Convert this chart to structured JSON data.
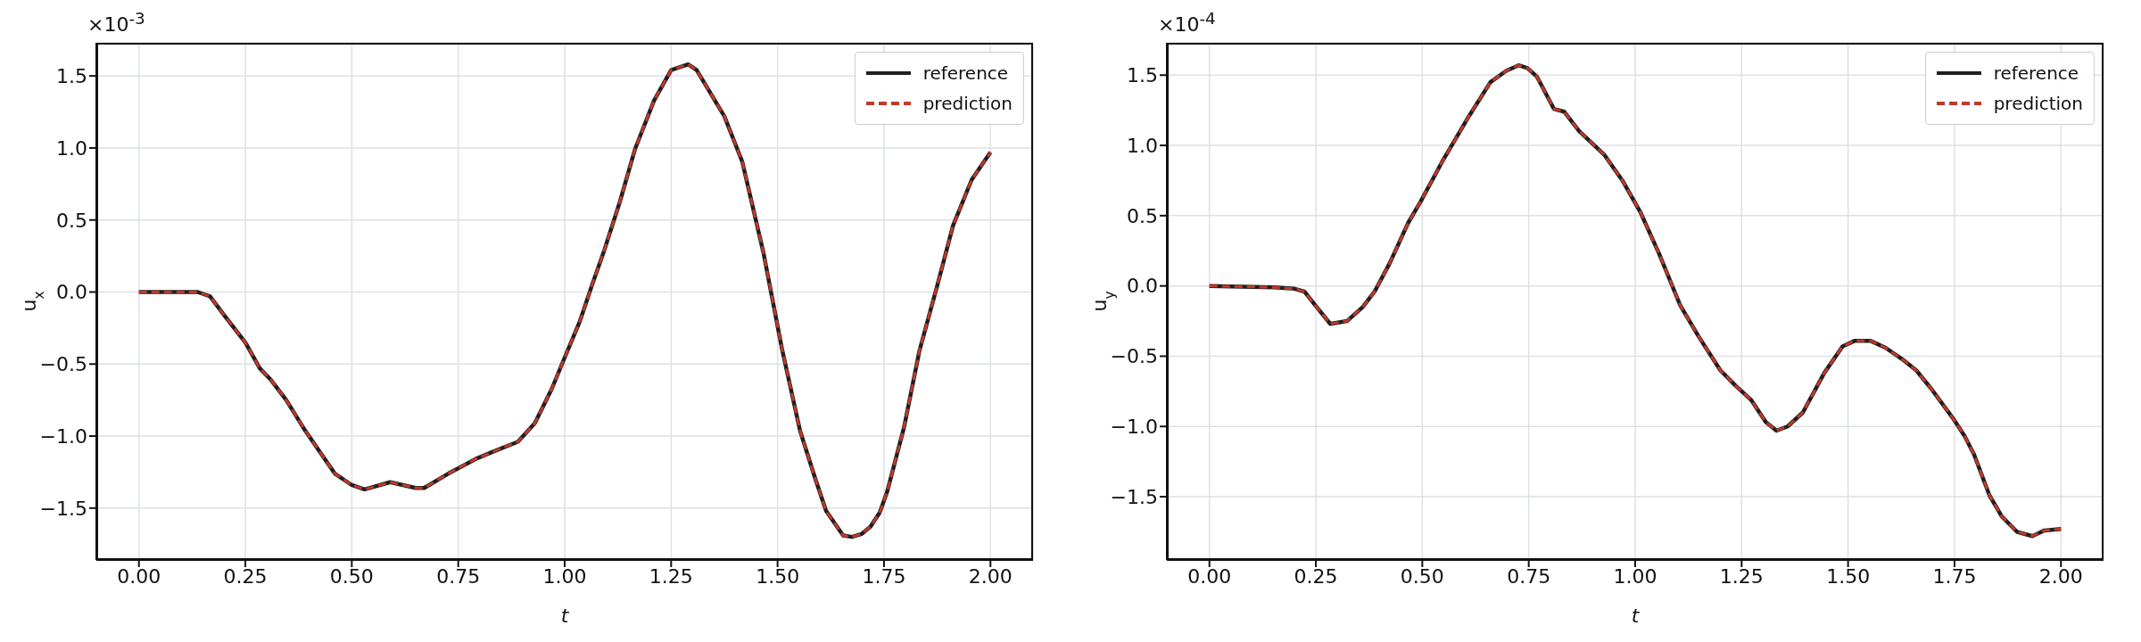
{
  "chart_data": [
    {
      "type": "line",
      "xlabel": "t",
      "ylabel": "u$_{x}$",
      "annotations": [
        "×10$^{-3}$"
      ],
      "legend": "top right",
      "grid": true,
      "x": [
        0,
        0.138,
        0.167,
        0.2,
        0.25,
        0.284,
        0.31,
        0.346,
        0.39,
        0.46,
        0.5,
        0.53,
        0.59,
        0.65,
        0.67,
        0.727,
        0.79,
        0.83,
        0.89,
        0.93,
        0.97,
        1.0,
        1.036,
        1.065,
        1.093,
        1.13,
        1.165,
        1.21,
        1.25,
        1.29,
        1.31,
        1.375,
        1.417,
        1.467,
        1.51,
        1.553,
        1.589,
        1.614,
        1.654,
        1.675,
        1.697,
        1.718,
        1.74,
        1.757,
        1.797,
        1.833,
        1.876,
        1.912,
        1.956,
        2.0
      ],
      "series": [
        {
          "name": "reference",
          "color": "#1f1f1f",
          "line_style": "solid",
          "values": [
            0,
            0,
            -0.03,
            -0.16,
            -0.35,
            -0.53,
            -0.61,
            -0.75,
            -0.96,
            -1.26,
            -1.34,
            -1.37,
            -1.32,
            -1.36,
            -1.36,
            -1.26,
            -1.16,
            -1.11,
            -1.04,
            -0.91,
            -0.67,
            -0.455,
            -0.2,
            0.055,
            0.29,
            0.63,
            0.99,
            1.33,
            1.54,
            1.58,
            1.54,
            1.22,
            0.905,
            0.27,
            -0.39,
            -0.965,
            -1.3,
            -1.52,
            -1.69,
            -1.7,
            -1.68,
            -1.63,
            -1.53,
            -1.39,
            -0.94,
            -0.41,
            0.055,
            0.46,
            0.78,
            0.97
          ]
        },
        {
          "name": "prediction",
          "color": "#c0392b",
          "line_style": "dashed",
          "values": [
            0,
            0,
            -0.03,
            -0.16,
            -0.35,
            -0.53,
            -0.61,
            -0.75,
            -0.96,
            -1.26,
            -1.34,
            -1.37,
            -1.32,
            -1.36,
            -1.36,
            -1.26,
            -1.16,
            -1.11,
            -1.04,
            -0.91,
            -0.67,
            -0.455,
            -0.2,
            0.055,
            0.29,
            0.63,
            0.99,
            1.33,
            1.54,
            1.58,
            1.54,
            1.22,
            0.905,
            0.27,
            -0.39,
            -0.965,
            -1.3,
            -1.52,
            -1.69,
            -1.7,
            -1.68,
            -1.63,
            -1.53,
            -1.39,
            -0.94,
            -0.41,
            0.055,
            0.46,
            0.78,
            0.97
          ]
        }
      ],
      "xlim": [
        -0.1,
        2.1
      ],
      "xticks": [
        {
          "value": 0,
          "label": "0.00"
        },
        {
          "value": 0.25,
          "label": "0.25"
        },
        {
          "value": 0.5,
          "label": "0.50"
        },
        {
          "value": 0.75,
          "label": "0.75"
        },
        {
          "value": 1,
          "label": "1.00"
        },
        {
          "value": 1.25,
          "label": "1.25"
        },
        {
          "value": 1.5,
          "label": "1.50"
        },
        {
          "value": 1.75,
          "label": "1.75"
        },
        {
          "value": 2,
          "label": "2.00"
        }
      ],
      "ylim": [
        -1.86,
        1.73
      ],
      "yticks": [
        {
          "value": -1.5,
          "label": "−1.5"
        },
        {
          "value": -1,
          "label": "−1.0"
        },
        {
          "value": -0.5,
          "label": "−0.5"
        },
        {
          "value": 0,
          "label": "0.0"
        },
        {
          "value": 0.5,
          "label": "0.5"
        },
        {
          "value": 1,
          "label": "1.0"
        },
        {
          "value": 1.5,
          "label": "1.5"
        }
      ]
    },
    {
      "type": "line",
      "xlabel": "t",
      "ylabel": "u$_{y}$",
      "annotations": [
        "×10$^{-4}$"
      ],
      "legend": "top right",
      "grid": true,
      "x": [
        0,
        0.151,
        0.2,
        0.223,
        0.249,
        0.284,
        0.323,
        0.36,
        0.388,
        0.424,
        0.467,
        0.496,
        0.546,
        0.61,
        0.66,
        0.697,
        0.726,
        0.747,
        0.769,
        0.809,
        0.833,
        0.869,
        0.927,
        0.97,
        1.013,
        1.056,
        1.106,
        1.149,
        1.2,
        1.236,
        1.272,
        1.307,
        1.332,
        1.358,
        1.394,
        1.444,
        1.487,
        1.516,
        1.552,
        1.588,
        1.631,
        1.66,
        1.695,
        1.746,
        1.774,
        1.796,
        1.832,
        1.861,
        1.897,
        1.933,
        1.961,
        2.0
      ],
      "series": [
        {
          "name": "reference",
          "color": "#1f1f1f",
          "line_style": "solid",
          "values": [
            0,
            -0.01,
            -0.02,
            -0.04,
            -0.14,
            -0.27,
            -0.25,
            -0.15,
            -0.04,
            0.165,
            0.45,
            0.6,
            0.88,
            1.21,
            1.45,
            1.53,
            1.57,
            1.55,
            1.49,
            1.26,
            1.24,
            1.1,
            0.935,
            0.75,
            0.52,
            0.23,
            -0.14,
            -0.36,
            -0.6,
            -0.71,
            -0.81,
            -0.97,
            -1.03,
            -1.0,
            -0.9,
            -0.62,
            -0.43,
            -0.39,
            -0.39,
            -0.44,
            -0.53,
            -0.6,
            -0.73,
            -0.94,
            -1.07,
            -1.2,
            -1.49,
            -1.64,
            -1.75,
            -1.78,
            -1.74,
            -1.73
          ]
        },
        {
          "name": "prediction",
          "color": "#c0392b",
          "line_style": "dashed",
          "values": [
            0,
            -0.01,
            -0.02,
            -0.04,
            -0.14,
            -0.27,
            -0.25,
            -0.15,
            -0.04,
            0.165,
            0.45,
            0.6,
            0.88,
            1.21,
            1.45,
            1.53,
            1.57,
            1.55,
            1.49,
            1.26,
            1.24,
            1.1,
            0.935,
            0.75,
            0.52,
            0.23,
            -0.14,
            -0.36,
            -0.6,
            -0.71,
            -0.81,
            -0.97,
            -1.03,
            -1.0,
            -0.9,
            -0.62,
            -0.43,
            -0.39,
            -0.39,
            -0.44,
            -0.53,
            -0.6,
            -0.73,
            -0.94,
            -1.07,
            -1.2,
            -1.49,
            -1.64,
            -1.75,
            -1.78,
            -1.74,
            -1.73
          ]
        }
      ],
      "xlim": [
        -0.1,
        2.1
      ],
      "xticks": [
        {
          "value": 0,
          "label": "0.00"
        },
        {
          "value": 0.25,
          "label": "0.25"
        },
        {
          "value": 0.5,
          "label": "0.50"
        },
        {
          "value": 0.75,
          "label": "0.75"
        },
        {
          "value": 1,
          "label": "1.00"
        },
        {
          "value": 1.25,
          "label": "1.25"
        },
        {
          "value": 1.5,
          "label": "1.50"
        },
        {
          "value": 1.75,
          "label": "1.75"
        },
        {
          "value": 2,
          "label": "2.00"
        }
      ],
      "ylim": [
        -1.95,
        1.73
      ],
      "yticks": [
        {
          "value": -1.5,
          "label": "−1.5"
        },
        {
          "value": -1,
          "label": "−1.0"
        },
        {
          "value": -0.5,
          "label": "−0.5"
        },
        {
          "value": 0,
          "label": "0.0"
        },
        {
          "value": 0.5,
          "label": "0.5"
        },
        {
          "value": 1,
          "label": "1.0"
        },
        {
          "value": 1.5,
          "label": "1.5"
        }
      ]
    }
  ]
}
